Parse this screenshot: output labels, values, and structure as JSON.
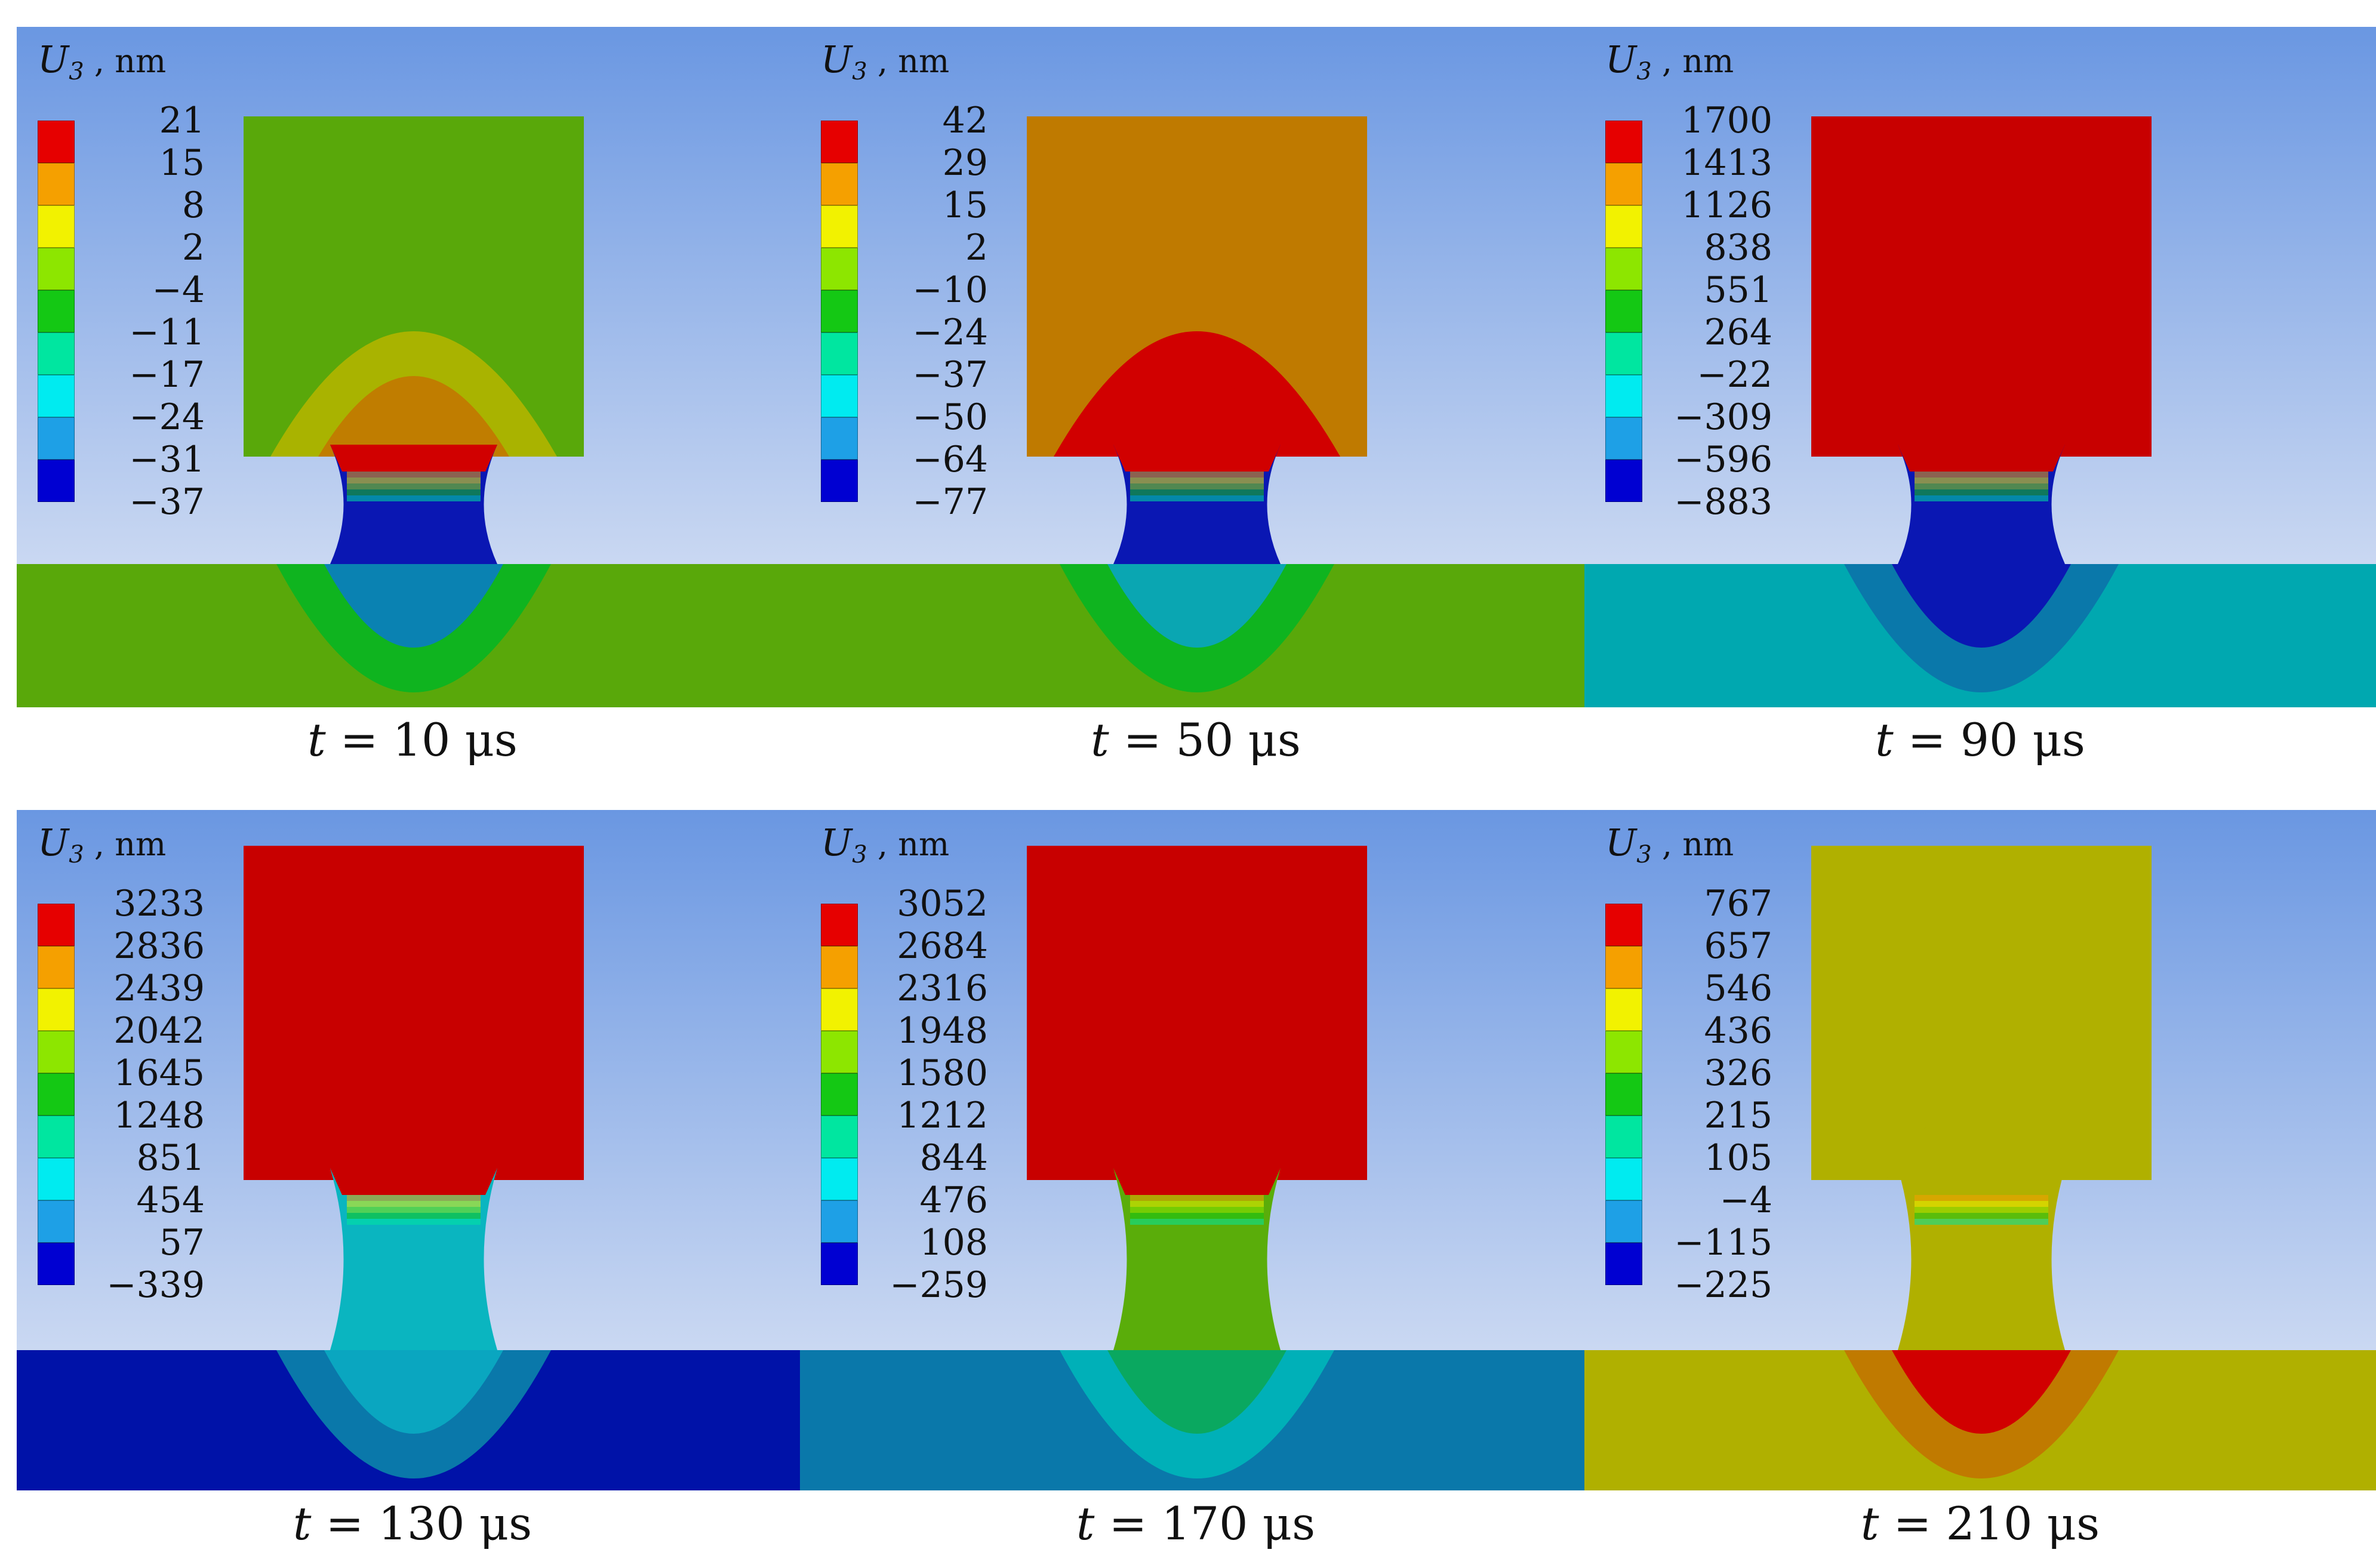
{
  "legend": {
    "symbol": "U",
    "subscript": "3",
    "unit": ", nm",
    "colors": [
      "#e60000",
      "#f5a000",
      "#f2f200",
      "#8de600",
      "#14c814",
      "#00e6a0",
      "#00ebf0",
      "#1ea0e6",
      "#0000d2"
    ]
  },
  "panels": [
    {
      "time": "10",
      "ticks": [
        "21",
        "15",
        "8",
        "2",
        "−4",
        "−11",
        "−17",
        "−24",
        "−31",
        "−37"
      ],
      "body": {
        "top": "#59a80a",
        "dome_outer": "#a9b300",
        "dome_mid": "#c07d00",
        "neck_top": "#d10000",
        "neck_bottom": "#0a17b3",
        "ground": "#59a80a",
        "ground_inner": "#0fb41f",
        "ground_core": "#0a82b2"
      }
    },
    {
      "time": "50",
      "ticks": [
        "42",
        "29",
        "15",
        "2",
        "−10",
        "−24",
        "−37",
        "−50",
        "−64",
        "−77"
      ],
      "body": {
        "top": "#bf7a00",
        "dome_outer": "#d10000",
        "dome_mid": "#d10000",
        "neck_top": "#d10000",
        "neck_bottom": "#0a17b3",
        "ground": "#59a80a",
        "ground_inner": "#0fb41f",
        "ground_core": "#0aa6b2"
      }
    },
    {
      "time": "90",
      "ticks": [
        "1700",
        "1413",
        "1126",
        "838",
        "551",
        "264",
        "−22",
        "−309",
        "−596",
        "−883"
      ],
      "body": {
        "top": "#c80000",
        "dome_outer": "#c80000",
        "dome_mid": "#c80000",
        "neck_top": "#c80000",
        "neck_bottom": "#0a17b3",
        "ground": "#00a8b0",
        "ground_inner": "#0a78aa",
        "ground_core": "#0a17b3"
      }
    },
    {
      "time": "130",
      "ticks": [
        "3233",
        "2836",
        "2439",
        "2042",
        "1645",
        "1248",
        "851",
        "454",
        "57",
        "−339"
      ],
      "body": {
        "top": "#c80000",
        "dome_outer": "#c80000",
        "dome_mid": "#c80000",
        "neck_top": "#c80000",
        "neck_bottom": "#0ab5c0",
        "ground": "#0012a8",
        "ground_inner": "#0a78aa",
        "ground_core": "#0aa6c0"
      }
    },
    {
      "time": "170",
      "ticks": [
        "3052",
        "2684",
        "2316",
        "1948",
        "1580",
        "1212",
        "844",
        "476",
        "108",
        "−259"
      ],
      "body": {
        "top": "#c80000",
        "dome_outer": "#c80000",
        "dome_mid": "#c80000",
        "neck_top": "#c80000",
        "neck_bottom": "#5aad0a",
        "ground": "#0a78aa",
        "ground_inner": "#00b0b8",
        "ground_core": "#0aa860"
      }
    },
    {
      "time": "210",
      "ticks": [
        "767",
        "657",
        "546",
        "436",
        "326",
        "215",
        "105",
        "−4",
        "−115",
        "−225"
      ],
      "body": {
        "top": "#b0b000",
        "dome_outer": "#b0b000",
        "dome_mid": "#b0b000",
        "neck_top": "#b0b000",
        "neck_bottom": "#b0b000",
        "ground": "#b0b000",
        "ground_inner": "#c07a00",
        "ground_core": "#d10000"
      }
    }
  ],
  "caption": {
    "prefix": "t",
    "equals": " = ",
    "unit": " μs"
  }
}
